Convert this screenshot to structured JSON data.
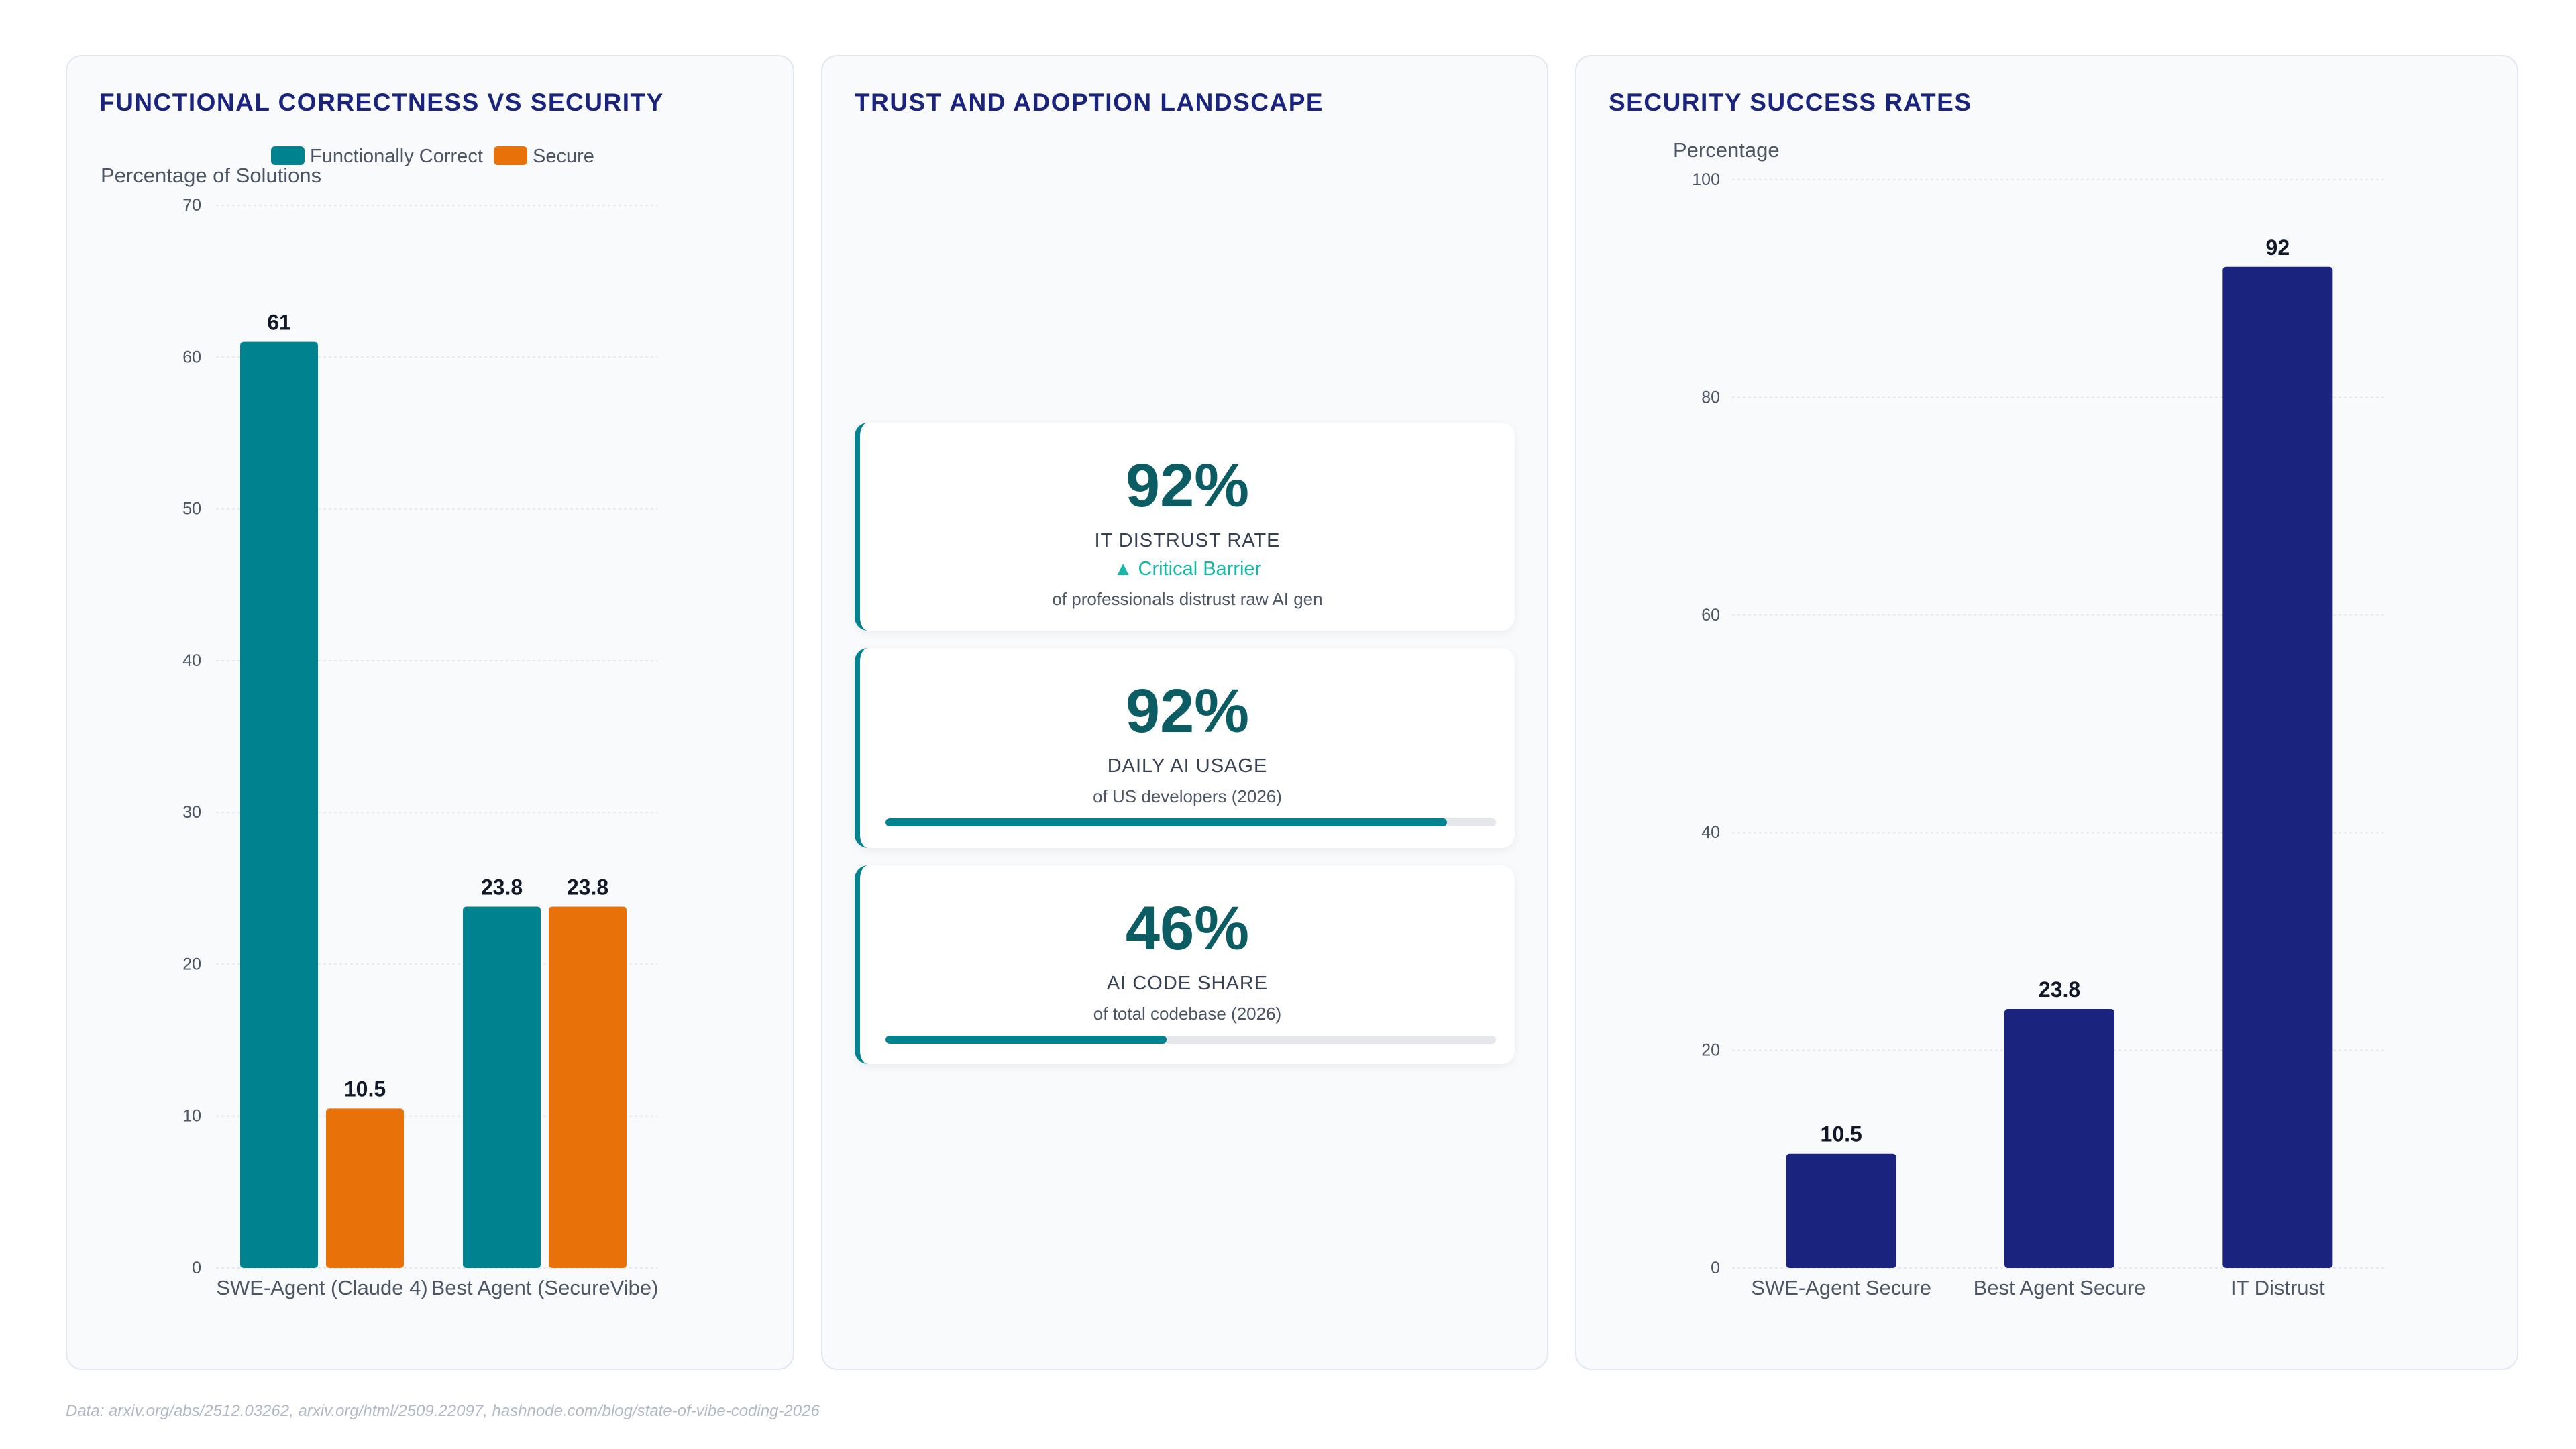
{
  "colors": {
    "teal": "#00838f",
    "orange": "#e8710a",
    "navy": "#1a237e",
    "kpi_value": "#0b5c63",
    "trend_up": "#14b8a6"
  },
  "panels": {
    "left": {
      "title": "FUNCTIONAL CORRECTNESS VS SECURITY"
    },
    "middle": {
      "title": "TRUST AND ADOPTION LANDSCAPE"
    },
    "right": {
      "title": "SECURITY SUCCESS RATES"
    }
  },
  "chart_data": [
    {
      "type": "bar",
      "title": "FUNCTIONAL CORRECTNESS VS SECURITY",
      "ylabel": "Percentage of Solutions",
      "xlabel": "",
      "ylim": [
        0,
        70
      ],
      "yticks": [
        0,
        10,
        20,
        30,
        40,
        50,
        60,
        70
      ],
      "grid": true,
      "legend_position": "top",
      "categories": [
        "SWE-Agent (Claude 4)",
        "Best Agent (SecureVibe)"
      ],
      "series": [
        {
          "name": "Functionally Correct",
          "color": "#00838f",
          "values": [
            61,
            23.8
          ]
        },
        {
          "name": "Secure",
          "color": "#e8710a",
          "values": [
            10.5,
            23.8
          ]
        }
      ]
    },
    {
      "type": "bar",
      "title": "SECURITY SUCCESS RATES",
      "ylabel": "Percentage",
      "xlabel": "",
      "ylim": [
        0,
        100
      ],
      "yticks": [
        0,
        20,
        40,
        60,
        80,
        100
      ],
      "grid": true,
      "categories": [
        "SWE-Agent Secure",
        "Best Agent Secure",
        "IT Distrust"
      ],
      "series": [
        {
          "color": "#1a237e",
          "values": [
            10.5,
            23.8,
            92
          ]
        }
      ]
    }
  ],
  "kpis": [
    {
      "value": "92%",
      "label": "IT DISTRUST RATE",
      "trend": "▲ Critical Barrier",
      "subtitle": "of professionals distrust raw AI gen"
    },
    {
      "value": "92%",
      "label": "DAILY AI USAGE",
      "subtitle": "of US developers (2026)",
      "progress": 0.92
    },
    {
      "value": "46%",
      "label": "AI CODE SHARE",
      "subtitle": "of total codebase (2026)",
      "progress": 0.46
    }
  ],
  "footer": {
    "source": "Data: arxiv.org/abs/2512.03262, arxiv.org/html/2509.22097, hashnode.com/blog/state-of-vibe-coding-2026"
  }
}
